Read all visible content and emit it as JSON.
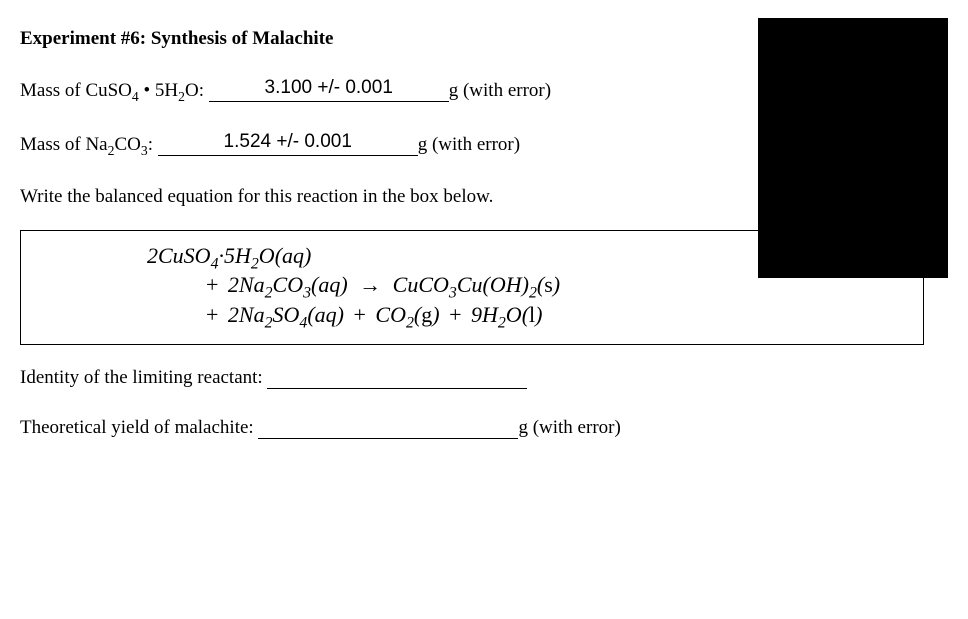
{
  "title": "Experiment #6: Synthesis of Malachite",
  "mass1": {
    "label_pre": "Mass of CuSO",
    "label_sub1": "4",
    "label_mid": " • 5H",
    "label_sub2": "2",
    "label_post": "O: ",
    "value": "3.100 +/- 0.001",
    "fill_width": 240,
    "unit": "g (with error)"
  },
  "mass2": {
    "label_pre": "Mass of Na",
    "label_sub1": "2",
    "label_mid": "CO",
    "label_sub2": "3",
    "label_post": ": ",
    "value": "1.524 +/- 0.001",
    "fill_width": 260,
    "unit": "g (with error)"
  },
  "prompt": "Write the balanced equation for this reaction in the box below.",
  "equation": {
    "line1": "2CuSO₄·5H₂O(aq)",
    "line2_left": "+  2Na₂CO₃(aq)",
    "line2_right": "CuCO₃Cu(OH)₂(s)",
    "line3": "+  2Na₂SO₄(aq)  +  CO₂(g)  +  9H₂O(l)"
  },
  "limiting": {
    "label": "Identity of the limiting reactant: ",
    "value": "",
    "fill_width": 260,
    "unit": ""
  },
  "yield": {
    "label": "Theoretical yield of malachite: ",
    "value": "",
    "fill_width": 260,
    "unit": "g (with error)"
  },
  "blackbox": {
    "bg": "#000000"
  }
}
